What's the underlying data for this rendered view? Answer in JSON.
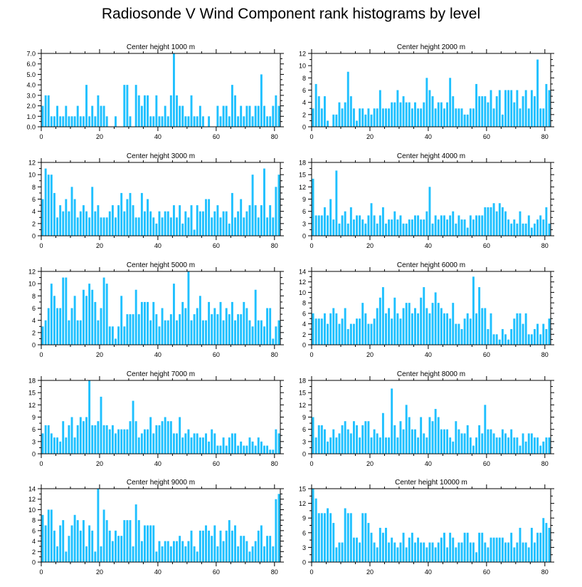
{
  "title": "Radiosonde V Wind Component rank histograms by level",
  "colors": {
    "bar": "#1ec0ff",
    "axis": "#000000",
    "text": "#000000"
  },
  "chart_data": [
    {
      "type": "bar",
      "title": "Center height 1000 m",
      "ylim": [
        0,
        7
      ],
      "yticks": [
        0,
        1,
        2,
        3,
        4,
        5,
        6,
        7
      ],
      "ytick_labels": [
        "0.0",
        "1.0",
        "2.0",
        "3.0",
        "4.0",
        "5.0",
        "6.0",
        "7.0"
      ],
      "xlim": [
        0,
        82
      ],
      "xticks": [
        0,
        20,
        40,
        60,
        80
      ],
      "values": [
        2,
        3,
        3,
        1,
        1,
        2,
        1,
        1,
        2,
        1,
        1,
        1,
        2,
        1,
        1,
        4,
        1,
        2,
        1,
        3,
        2,
        2,
        1,
        0,
        0,
        1,
        0,
        0,
        4,
        4,
        1,
        0,
        4,
        3,
        2,
        3,
        3,
        1,
        1,
        3,
        1,
        1,
        2,
        1,
        3,
        7,
        3,
        2,
        2,
        1,
        1,
        3,
        1,
        1,
        2,
        1,
        0,
        1,
        0,
        0,
        2,
        1,
        2,
        2,
        1,
        4,
        3,
        1,
        2,
        1,
        2,
        2,
        1,
        2,
        2,
        5,
        2,
        1,
        1,
        2,
        3,
        2
      ]
    },
    {
      "type": "bar",
      "title": "Center height 2000 m",
      "ylim": [
        0,
        12
      ],
      "yticks": [
        0,
        2,
        4,
        6,
        8,
        10,
        12
      ],
      "ytick_labels": [
        "0",
        "2",
        "4",
        "6",
        "8",
        "10",
        "12"
      ],
      "xlim": [
        0,
        82
      ],
      "xticks": [
        0,
        20,
        40,
        60,
        80
      ],
      "values": [
        3,
        7,
        5,
        3,
        5,
        1,
        0,
        2,
        2,
        4,
        3,
        4,
        9,
        5,
        3,
        1,
        3,
        3,
        2,
        3,
        2,
        3,
        3,
        6,
        3,
        3,
        3,
        4,
        4,
        6,
        4,
        5,
        4,
        4,
        3,
        4,
        3,
        3,
        4,
        8,
        6,
        5,
        3,
        4,
        4,
        3,
        4,
        8,
        5,
        3,
        3,
        3,
        2,
        2,
        3,
        3,
        7,
        5,
        5,
        5,
        4,
        6,
        3,
        5,
        6,
        2,
        6,
        6,
        6,
        4,
        6,
        3,
        5,
        6,
        3,
        6,
        5,
        11,
        3,
        3,
        7,
        6
      ]
    },
    {
      "type": "bar",
      "title": "Center height 3000 m",
      "ylim": [
        0,
        12
      ],
      "yticks": [
        0,
        2,
        4,
        6,
        8,
        10,
        12
      ],
      "ytick_labels": [
        "0",
        "2",
        "4",
        "6",
        "8",
        "10",
        "12"
      ],
      "xlim": [
        0,
        82
      ],
      "xticks": [
        0,
        20,
        40,
        60,
        80
      ],
      "values": [
        6,
        11,
        10,
        10,
        7,
        3,
        5,
        4,
        6,
        4,
        8,
        6,
        3,
        4,
        5,
        4,
        3,
        8,
        4,
        5,
        3,
        3,
        3,
        4,
        5,
        3,
        5,
        7,
        4,
        6,
        7,
        5,
        3,
        3,
        7,
        4,
        6,
        4,
        3,
        2,
        4,
        3,
        4,
        4,
        3,
        5,
        3,
        5,
        2,
        4,
        3,
        5,
        1,
        5,
        4,
        4,
        6,
        6,
        3,
        4,
        5,
        3,
        4,
        4,
        2,
        7,
        3,
        4,
        6,
        3,
        4,
        5,
        10,
        5,
        3,
        5,
        11,
        3,
        5,
        3,
        8,
        10
      ]
    },
    {
      "type": "bar",
      "title": "Center height 4000 m",
      "ylim": [
        0,
        18
      ],
      "yticks": [
        0,
        3,
        6,
        9,
        12,
        15,
        18
      ],
      "ytick_labels": [
        "0",
        "3",
        "6",
        "9",
        "12",
        "15",
        "18"
      ],
      "xlim": [
        0,
        82
      ],
      "xticks": [
        0,
        20,
        40,
        60,
        80
      ],
      "values": [
        14,
        5,
        5,
        5,
        7,
        5,
        9,
        4,
        16,
        3,
        5,
        6,
        3,
        7,
        4,
        5,
        5,
        4,
        3,
        5,
        8,
        5,
        3,
        5,
        7,
        3,
        4,
        4,
        6,
        4,
        5,
        3,
        3,
        4,
        4,
        5,
        5,
        4,
        4,
        6,
        12,
        3,
        5,
        4,
        5,
        5,
        4,
        5,
        6,
        3,
        5,
        4,
        4,
        2,
        5,
        4,
        5,
        5,
        5,
        7,
        7,
        7,
        8,
        6,
        8,
        7,
        6,
        4,
        3,
        4,
        3,
        6,
        3,
        3,
        5,
        2,
        3,
        4,
        5,
        4,
        7,
        3
      ]
    },
    {
      "type": "bar",
      "title": "Center height 5000 m",
      "ylim": [
        0,
        12
      ],
      "yticks": [
        0,
        2,
        4,
        6,
        8,
        10,
        12
      ],
      "ytick_labels": [
        "0",
        "2",
        "4",
        "6",
        "8",
        "10",
        "12"
      ],
      "xlim": [
        0,
        82
      ],
      "xticks": [
        0,
        20,
        40,
        60,
        80
      ],
      "values": [
        3,
        4,
        6,
        10,
        8,
        6,
        6,
        11,
        11,
        4,
        6,
        8,
        4,
        4,
        9,
        8,
        10,
        9,
        7,
        4,
        6,
        11,
        10,
        3,
        3,
        1,
        3,
        8,
        3,
        5,
        5,
        5,
        9,
        5,
        7,
        7,
        7,
        4,
        7,
        5,
        3,
        6,
        4,
        4,
        5,
        10,
        4,
        5,
        7,
        6,
        12,
        4,
        5,
        6,
        8,
        4,
        4,
        7,
        5,
        6,
        5,
        7,
        4,
        6,
        5,
        7,
        4,
        5,
        5,
        7,
        6,
        4,
        3,
        9,
        4,
        4,
        3,
        6,
        6,
        1,
        3,
        4
      ]
    },
    {
      "type": "bar",
      "title": "Center height 6000 m",
      "ylim": [
        0,
        14
      ],
      "yticks": [
        0,
        2,
        4,
        6,
        8,
        10,
        12,
        14
      ],
      "ytick_labels": [
        "0",
        "2",
        "4",
        "6",
        "8",
        "10",
        "12",
        "14"
      ],
      "xlim": [
        0,
        82
      ],
      "xticks": [
        0,
        20,
        40,
        60,
        80
      ],
      "values": [
        6,
        5,
        5,
        5,
        6,
        4,
        6,
        7,
        6,
        4,
        5,
        7,
        3,
        4,
        4,
        5,
        5,
        8,
        6,
        4,
        4,
        5,
        7,
        9,
        11,
        6,
        7,
        5,
        9,
        6,
        5,
        7,
        8,
        8,
        6,
        7,
        6,
        9,
        11,
        7,
        6,
        8,
        10,
        8,
        7,
        6,
        6,
        5,
        8,
        4,
        4,
        3,
        5,
        6,
        5,
        13,
        6,
        11,
        7,
        7,
        3,
        6,
        2,
        2,
        1,
        3,
        2,
        1,
        3,
        5,
        6,
        6,
        4,
        6,
        2,
        2,
        3,
        4,
        2,
        4,
        3,
        5
      ]
    },
    {
      "type": "bar",
      "title": "Center height 7000 m",
      "ylim": [
        0,
        18
      ],
      "yticks": [
        0,
        3,
        6,
        9,
        12,
        15,
        18
      ],
      "ytick_labels": [
        "0",
        "3",
        "6",
        "9",
        "12",
        "15",
        "18"
      ],
      "xlim": [
        0,
        82
      ],
      "xticks": [
        0,
        20,
        40,
        60,
        80
      ],
      "values": [
        5,
        7,
        7,
        5,
        4,
        4,
        3,
        8,
        4,
        7,
        9,
        4,
        7,
        9,
        8,
        9,
        18,
        7,
        7,
        8,
        14,
        7,
        7,
        6,
        7,
        5,
        6,
        6,
        6,
        6,
        8,
        13,
        8,
        4,
        5,
        6,
        6,
        9,
        5,
        7,
        7,
        8,
        9,
        8,
        8,
        5,
        5,
        9,
        4,
        5,
        6,
        4,
        5,
        5,
        4,
        4,
        5,
        3,
        6,
        5,
        2,
        2,
        4,
        2,
        4,
        5,
        5,
        2,
        3,
        2,
        2,
        4,
        3,
        2,
        4,
        3,
        2,
        2,
        1,
        1,
        6,
        5
      ]
    },
    {
      "type": "bar",
      "title": "Center height 8000 m",
      "ylim": [
        0,
        18
      ],
      "yticks": [
        0,
        3,
        6,
        9,
        12,
        15,
        18
      ],
      "ytick_labels": [
        "0",
        "3",
        "6",
        "9",
        "12",
        "15",
        "18"
      ],
      "xlim": [
        0,
        82
      ],
      "xticks": [
        0,
        20,
        40,
        60,
        80
      ],
      "values": [
        9,
        4,
        7,
        7,
        6,
        3,
        4,
        6,
        4,
        5,
        7,
        8,
        6,
        5,
        8,
        7,
        4,
        7,
        8,
        8,
        4,
        6,
        5,
        4,
        10,
        4,
        4,
        16,
        7,
        4,
        8,
        6,
        12,
        9,
        6,
        6,
        4,
        9,
        5,
        4,
        9,
        8,
        11,
        9,
        6,
        6,
        6,
        4,
        3,
        8,
        6,
        5,
        5,
        7,
        4,
        2,
        4,
        7,
        5,
        12,
        6,
        6,
        5,
        4,
        4,
        6,
        5,
        4,
        6,
        4,
        4,
        2,
        5,
        3,
        5,
        5,
        4,
        4,
        2,
        3,
        4,
        4
      ]
    },
    {
      "type": "bar",
      "title": "Center height 9000 m",
      "ylim": [
        0,
        14
      ],
      "yticks": [
        0,
        2,
        4,
        6,
        8,
        10,
        12,
        14
      ],
      "ytick_labels": [
        "0",
        "2",
        "4",
        "6",
        "8",
        "10",
        "12",
        "14"
      ],
      "xlim": [
        0,
        82
      ],
      "xticks": [
        0,
        20,
        40,
        60,
        80
      ],
      "values": [
        9,
        7,
        10,
        10,
        6,
        3,
        7,
        8,
        2,
        5,
        7,
        9,
        8,
        6,
        8,
        3,
        7,
        6,
        2,
        14,
        3,
        10,
        8,
        6,
        4,
        6,
        5,
        5,
        8,
        8,
        8,
        3,
        11,
        8,
        4,
        7,
        7,
        7,
        7,
        2,
        4,
        3,
        4,
        4,
        3,
        4,
        4,
        5,
        4,
        3,
        4,
        6,
        3,
        2,
        6,
        6,
        7,
        6,
        5,
        7,
        3,
        6,
        4,
        6,
        8,
        6,
        7,
        3,
        5,
        5,
        4,
        2,
        3,
        4,
        6,
        7,
        3,
        5,
        5,
        3,
        12,
        13
      ]
    },
    {
      "type": "bar",
      "title": "Center height 10000 m",
      "ylim": [
        0,
        15
      ],
      "yticks": [
        0,
        3,
        6,
        9,
        12,
        15
      ],
      "ytick_labels": [
        "0",
        "3",
        "6",
        "9",
        "12",
        "15"
      ],
      "xlim": [
        0,
        82
      ],
      "xticks": [
        0,
        20,
        40,
        60,
        80
      ],
      "values": [
        15,
        13,
        10,
        10,
        10,
        11,
        10,
        8,
        3,
        4,
        4,
        11,
        10,
        10,
        5,
        5,
        4,
        10,
        10,
        8,
        6,
        4,
        3,
        7,
        6,
        7,
        4,
        5,
        4,
        3,
        4,
        6,
        3,
        5,
        6,
        4,
        5,
        4,
        4,
        3,
        4,
        4,
        3,
        4,
        5,
        6,
        3,
        6,
        5,
        3,
        4,
        4,
        6,
        6,
        4,
        4,
        2,
        6,
        6,
        4,
        3,
        5,
        5,
        5,
        5,
        5,
        4,
        4,
        6,
        3,
        4,
        7,
        4,
        4,
        3,
        7,
        4,
        6,
        6,
        9,
        8,
        7
      ]
    }
  ]
}
